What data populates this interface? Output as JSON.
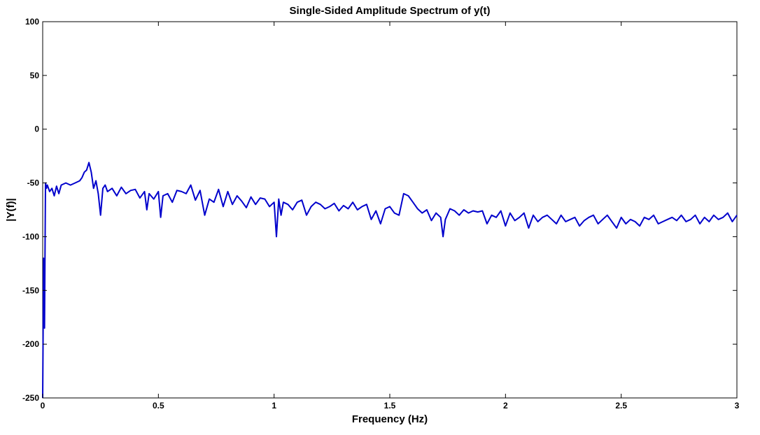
{
  "chart_data": {
    "type": "line",
    "title": "Single-Sided Amplitude Spectrum of y(t)",
    "xlabel": "Frequency (Hz)",
    "ylabel": "|Y(f)|",
    "xlim": [
      0,
      3
    ],
    "ylim": [
      -250,
      100
    ],
    "xticks": [
      0,
      0.5,
      1,
      1.5,
      2,
      2.5,
      3
    ],
    "xtick_labels": [
      "0",
      "0.5",
      "1",
      "1.5",
      "2",
      "2.5",
      "3"
    ],
    "yticks": [
      100,
      50,
      0,
      -50,
      -100,
      -150,
      -200,
      -250
    ],
    "ytick_labels": [
      "100",
      "50",
      "0",
      "-50",
      "-100",
      "-150",
      "-200",
      "-250"
    ],
    "grid": false,
    "line_color": "#0000cc",
    "series": [
      {
        "x": [
          0,
          0.004,
          0.008,
          0.012,
          0.016,
          0.02,
          0.03,
          0.04,
          0.05,
          0.06,
          0.07,
          0.08,
          0.09,
          0.1,
          0.12,
          0.14,
          0.16,
          0.17,
          0.18,
          0.19,
          0.2,
          0.21,
          0.22,
          0.23,
          0.24,
          0.25,
          0.26,
          0.27,
          0.28,
          0.3,
          0.32,
          0.34,
          0.36,
          0.38,
          0.4,
          0.42,
          0.44,
          0.45,
          0.46,
          0.48,
          0.5,
          0.51,
          0.52,
          0.54,
          0.56,
          0.58,
          0.6,
          0.62,
          0.64,
          0.66,
          0.68,
          0.7,
          0.72,
          0.74,
          0.76,
          0.78,
          0.8,
          0.82,
          0.84,
          0.86,
          0.88,
          0.9,
          0.92,
          0.94,
          0.96,
          0.98,
          1.0,
          1.01,
          1.02,
          1.03,
          1.04,
          1.06,
          1.08,
          1.1,
          1.12,
          1.14,
          1.16,
          1.18,
          1.2,
          1.22,
          1.24,
          1.26,
          1.28,
          1.3,
          1.32,
          1.34,
          1.36,
          1.38,
          1.4,
          1.42,
          1.44,
          1.46,
          1.48,
          1.5,
          1.52,
          1.54,
          1.56,
          1.58,
          1.6,
          1.62,
          1.64,
          1.66,
          1.68,
          1.7,
          1.72,
          1.73,
          1.74,
          1.76,
          1.78,
          1.8,
          1.82,
          1.84,
          1.86,
          1.88,
          1.9,
          1.92,
          1.94,
          1.96,
          1.98,
          2.0,
          2.02,
          2.04,
          2.06,
          2.08,
          2.1,
          2.12,
          2.14,
          2.16,
          2.18,
          2.2,
          2.22,
          2.24,
          2.26,
          2.28,
          2.3,
          2.32,
          2.34,
          2.36,
          2.38,
          2.4,
          2.42,
          2.44,
          2.46,
          2.48,
          2.5,
          2.52,
          2.54,
          2.56,
          2.58,
          2.6,
          2.62,
          2.64,
          2.66,
          2.68,
          2.7,
          2.72,
          2.74,
          2.76,
          2.78,
          2.8,
          2.82,
          2.84,
          2.86,
          2.88,
          2.9,
          2.92,
          2.94,
          2.96,
          2.98,
          3.0
        ],
        "y": [
          -250,
          -120,
          -185,
          -50,
          -55,
          -52,
          -58,
          -55,
          -62,
          -53,
          -60,
          -52,
          -51,
          -50,
          -52,
          -50,
          -48,
          -45,
          -40,
          -38,
          -31,
          -40,
          -55,
          -48,
          -60,
          -80,
          -55,
          -52,
          -58,
          -55,
          -62,
          -54,
          -60,
          -57,
          -56,
          -64,
          -58,
          -75,
          -60,
          -65,
          -58,
          -82,
          -62,
          -60,
          -68,
          -57,
          -58,
          -60,
          -52,
          -66,
          -57,
          -80,
          -65,
          -68,
          -56,
          -72,
          -58,
          -70,
          -62,
          -67,
          -73,
          -63,
          -70,
          -64,
          -65,
          -72,
          -68,
          -100,
          -65,
          -80,
          -68,
          -70,
          -75,
          -68,
          -66,
          -80,
          -72,
          -68,
          -70,
          -74,
          -72,
          -69,
          -76,
          -71,
          -74,
          -68,
          -75,
          -72,
          -70,
          -84,
          -76,
          -88,
          -74,
          -72,
          -78,
          -80,
          -60,
          -62,
          -68,
          -74,
          -78,
          -75,
          -85,
          -78,
          -82,
          -100,
          -84,
          -74,
          -76,
          -80,
          -75,
          -78,
          -76,
          -77,
          -76,
          -88,
          -80,
          -82,
          -76,
          -90,
          -78,
          -85,
          -82,
          -78,
          -92,
          -80,
          -86,
          -82,
          -80,
          -84,
          -88,
          -80,
          -86,
          -84,
          -82,
          -90,
          -85,
          -82,
          -80,
          -88,
          -84,
          -80,
          -86,
          -92,
          -82,
          -88,
          -84,
          -86,
          -90,
          -82,
          -84,
          -80,
          -88,
          -86,
          -84,
          -82,
          -85,
          -80,
          -86,
          -84,
          -80,
          -88,
          -82,
          -86,
          -80,
          -84,
          -82,
          -78,
          -86,
          -80
        ]
      }
    ]
  }
}
